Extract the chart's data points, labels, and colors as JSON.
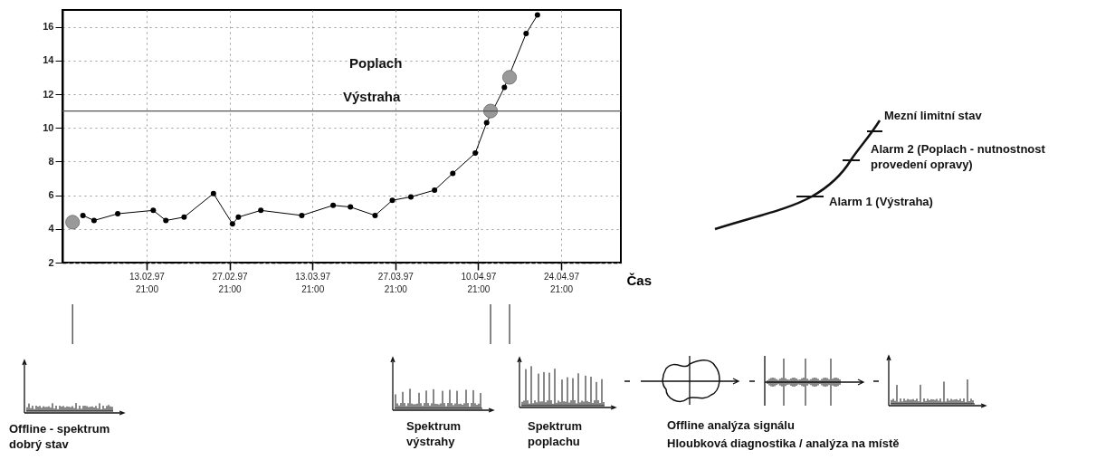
{
  "chart_data": {
    "type": "line",
    "xlabel": "Čas",
    "xlim": [
      "1997-01-30T16:00",
      "1997-05-04T23:00"
    ],
    "ylim": [
      2,
      17
    ],
    "xticks": [
      {
        "value": "1997-02-13T21:00",
        "label": "13.02.97 21:00"
      },
      {
        "value": "1997-02-27T21:00",
        "label": "27.02.97 21:00"
      },
      {
        "value": "1997-03-13T21:00",
        "label": "13.03.97 21:00"
      },
      {
        "value": "1997-03-27T21:00",
        "label": "27.03.97 21:00"
      },
      {
        "value": "1997-04-10T21:00",
        "label": "10.04.97 21:00"
      },
      {
        "value": "1997-04-24T21:00",
        "label": "24.04.97 21:00"
      }
    ],
    "yticks": [
      2,
      4,
      6,
      8,
      10,
      12,
      14,
      16
    ],
    "grid": true,
    "marker": "circle",
    "series": [
      {
        "type": "line",
        "color": "#000000",
        "x": [
          "1997-02-03T03:00",
          "1997-02-05T00:00",
          "1997-02-09T00:00",
          "1997-02-15T00:00",
          "1997-02-17T03:00",
          "1997-02-20T05:00",
          "1997-02-25T04:00",
          "1997-02-28T09:00",
          "1997-03-01T09:00",
          "1997-03-05T04:00",
          "1997-03-12T02:00",
          "1997-03-17T09:00",
          "1997-03-20T07:00",
          "1997-03-24T11:00",
          "1997-03-27T09:00",
          "1997-03-30T12:00",
          "1997-04-03T12:00",
          "1997-04-06T14:00",
          "1997-04-10T09:00",
          "1997-04-12T07:00",
          "1997-04-15T07:00",
          "1997-04-18T23:00",
          "1997-04-20T21:00"
        ],
        "values": [
          4.8,
          4.5,
          4.9,
          5.1,
          4.5,
          4.7,
          6.1,
          4.3,
          4.7,
          5.1,
          4.8,
          5.4,
          5.3,
          4.8,
          5.7,
          5.9,
          6.3,
          7.3,
          8.5,
          10.3,
          12.4,
          15.6,
          16.7
        ]
      },
      {
        "type": "scatter",
        "color": "#999999",
        "x": [
          "1997-02-01T09:00",
          "1997-04-12T23:00",
          "1997-04-16T04:00"
        ],
        "values": [
          4.4,
          11,
          13
        ]
      }
    ],
    "ref_lines": [
      {
        "axis": "y",
        "value": 11,
        "color": "#555555"
      }
    ],
    "annotations": [
      "Poplach",
      "Výstraha",
      "Mezní limitní stav",
      "Alarm 2 (Poplach - nutnostnost provedení opravy)",
      "Alarm 1 (Výstraha)",
      "Offline - spektrum dobrý stav",
      "Spektrum výstrahy",
      "Spektrum poplachu",
      "Offline analýza signálu",
      "Hloubková diagnostika / analýza na místě"
    ]
  }
}
